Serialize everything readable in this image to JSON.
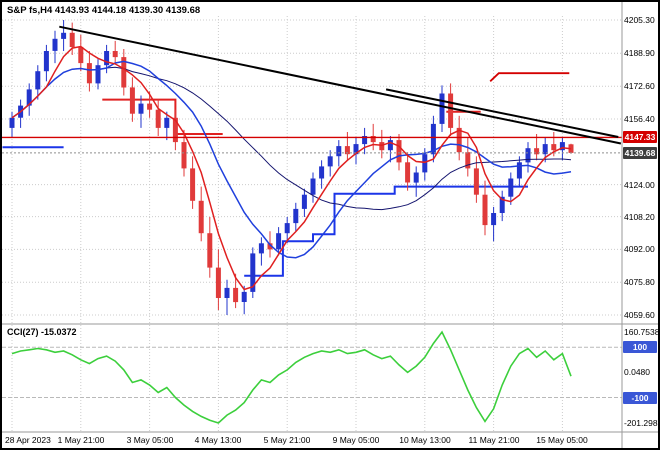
{
  "header": {
    "title": "S&P fs,H4 4143.93 4144.18 4139.30 4139.68"
  },
  "style": {
    "bull": "#2234cc",
    "bear": "#e03a3a",
    "ma_fast": "#e02020",
    "ma_slow": "#2040dd",
    "ma_trend": "#14146e",
    "step_red": "#e02020",
    "step_blue": "#1b35e8",
    "trendline": "#000000",
    "hline": "#d40000",
    "current_line": "#8f8f8f",
    "grid": "#cccccc",
    "cci_line": "#3ccf3c",
    "badge_hline_bg": "#d40000",
    "badge_current_bg": "#3d3d3d",
    "badge_cci_bg": "#3a57d6",
    "separator": "#9a9a9a"
  },
  "chart_data": {
    "type": "candlestick",
    "symbol": "S&P fs",
    "timeframe": "H4",
    "current_bar": {
      "open": 4143.93,
      "high": 4144.18,
      "low": 4139.3,
      "close": 4139.68
    },
    "candles": [
      [
        4152,
        4160,
        4147,
        4157
      ],
      [
        4157,
        4166,
        4152,
        4163
      ],
      [
        4163,
        4174,
        4158,
        4171
      ],
      [
        4171,
        4183,
        4166,
        4180
      ],
      [
        4180,
        4193,
        4175,
        4190
      ],
      [
        4190,
        4200,
        4184,
        4196
      ],
      [
        4196,
        4205.3,
        4190,
        4199
      ],
      [
        4199,
        4204,
        4188,
        4192
      ],
      [
        4192,
        4198,
        4180,
        4184
      ],
      [
        4184,
        4190,
        4170,
        4174
      ],
      [
        4174,
        4186,
        4171,
        4183
      ],
      [
        4183,
        4193,
        4179,
        4190
      ],
      [
        4190,
        4195,
        4184,
        4187
      ],
      [
        4187,
        4191,
        4168,
        4172
      ],
      [
        4172,
        4177,
        4155,
        4159
      ],
      [
        4159,
        4168,
        4152,
        4164
      ],
      [
        4164,
        4170,
        4157,
        4161
      ],
      [
        4161,
        4166,
        4148,
        4152
      ],
      [
        4152,
        4160,
        4146,
        4157
      ],
      [
        4157,
        4161,
        4141,
        4145
      ],
      [
        4145,
        4151,
        4128,
        4132
      ],
      [
        4132,
        4138,
        4112,
        4116
      ],
      [
        4116,
        4123,
        4096,
        4100
      ],
      [
        4100,
        4108,
        4078,
        4083
      ],
      [
        4083,
        4092,
        4062,
        4068
      ],
      [
        4068,
        4077,
        4059.6,
        4073
      ],
      [
        4073,
        4080,
        4063,
        4066
      ],
      [
        4066,
        4074,
        4060,
        4071
      ],
      [
        4071,
        4093,
        4068,
        4090
      ],
      [
        4090,
        4098,
        4084,
        4095
      ],
      [
        4095,
        4101,
        4088,
        4092
      ],
      [
        4092,
        4103,
        4089,
        4100
      ],
      [
        4100,
        4108,
        4095,
        4105
      ],
      [
        4105,
        4115,
        4101,
        4112
      ],
      [
        4112,
        4122,
        4108,
        4119
      ],
      [
        4119,
        4130,
        4115,
        4127
      ],
      [
        4127,
        4136,
        4122,
        4133
      ],
      [
        4133,
        4141,
        4128,
        4138
      ],
      [
        4138,
        4146,
        4133,
        4143
      ],
      [
        4143,
        4150,
        4136,
        4139
      ],
      [
        4139,
        4147,
        4134,
        4144
      ],
      [
        4144,
        4152,
        4139,
        4148
      ],
      [
        4148,
        4154,
        4141,
        4145
      ],
      [
        4145,
        4151,
        4137,
        4141
      ],
      [
        4141,
        4148,
        4135,
        4146
      ],
      [
        4146,
        4149,
        4131,
        4135
      ],
      [
        4135,
        4140,
        4121,
        4125
      ],
      [
        4125,
        4133,
        4118,
        4130
      ],
      [
        4130,
        4142,
        4126,
        4139
      ],
      [
        4139,
        4158,
        4135,
        4154
      ],
      [
        4154,
        4173,
        4150,
        4169
      ],
      [
        4169,
        4174,
        4148,
        4152
      ],
      [
        4152,
        4158,
        4136,
        4140
      ],
      [
        4140,
        4147,
        4128,
        4132
      ],
      [
        4132,
        4138,
        4115,
        4119
      ],
      [
        4119,
        4126,
        4099,
        4104
      ],
      [
        4104,
        4113,
        4096,
        4110
      ],
      [
        4110,
        4121,
        4106,
        4118
      ],
      [
        4118,
        4130,
        4114,
        4127
      ],
      [
        4127,
        4138,
        4123,
        4135
      ],
      [
        4135,
        4145,
        4130,
        4142
      ],
      [
        4142,
        4149,
        4136,
        4139
      ],
      [
        4139,
        4147,
        4135,
        4144
      ],
      [
        4144,
        4150,
        4138,
        4141
      ],
      [
        4141,
        4147,
        4136,
        4145
      ],
      [
        4143.93,
        4144.18,
        4139.3,
        4139.68
      ]
    ],
    "label_bar_indexes": [
      0,
      8,
      16,
      24,
      32,
      40,
      48,
      56,
      64
    ],
    "time_labels": [
      "28 Apr 2023",
      "1 May 21:00",
      "3 May 05:00",
      "4 May 13:00",
      "5 May 21:00",
      "9 May 05:00",
      "10 May 13:00",
      "11 May 21:00",
      "15 May 05:00"
    ],
    "price_axis_labels": [
      "4205.30",
      "4188.90",
      "4172.60",
      "4156.40",
      "4124.00",
      "4108.20",
      "4092.00",
      "4075.80",
      "4059.60"
    ],
    "price_badges": [
      {
        "label": "4147.33",
        "type": "hline"
      },
      {
        "label": "4139.68",
        "type": "current"
      }
    ],
    "ma": {
      "fast_period": 5,
      "slow_period": 12,
      "trend_period": 24
    },
    "overlays": {
      "hline_price": 4147.33,
      "current_price": 4139.68,
      "trendline_main": [
        [
          5.5,
          4202
        ],
        [
          70.8,
          4144.3
        ]
      ],
      "trendline_short": [
        [
          43.5,
          4171
        ],
        [
          70.5,
          4147.5
        ]
      ],
      "red_segment": [
        [
          55.6,
          4175
        ],
        [
          56.6,
          4179
        ],
        [
          64.8,
          4179
        ]
      ],
      "red_step": [
        [
          10.5,
          4166
        ],
        [
          19,
          4166
        ],
        [
          19,
          4149
        ],
        [
          24.5,
          4149
        ]
      ],
      "red_step2": [
        [
          50.5,
          4160
        ],
        [
          54.5,
          4160
        ]
      ],
      "blue_step_left": [
        [
          -1.1,
          4142.5
        ],
        [
          6,
          4142.5
        ]
      ],
      "blue_step": [
        [
          27,
          4079
        ],
        [
          31.5,
          4079
        ],
        [
          31.5,
          4096
        ],
        [
          35,
          4096
        ],
        [
          35,
          4099.5
        ],
        [
          37.5,
          4099.5
        ],
        [
          37.5,
          4119.5
        ],
        [
          44.5,
          4119.5
        ],
        [
          44.5,
          4123
        ],
        [
          60,
          4123
        ]
      ]
    },
    "cci": {
      "label": "CCI(27) -15.0372",
      "period": 27,
      "value": -15.0372,
      "axis_labels": [
        "160.7538",
        "0.0480",
        "-201.2987"
      ],
      "level_badges": [
        "100",
        "-100"
      ],
      "levels": [
        100,
        -100
      ],
      "values": [
        75,
        85,
        90,
        95,
        90,
        80,
        85,
        70,
        50,
        35,
        55,
        65,
        45,
        10,
        -40,
        -30,
        -50,
        -80,
        -60,
        -100,
        -130,
        -155,
        -175,
        -190,
        -201.3,
        -170,
        -150,
        -120,
        -70,
        -30,
        -40,
        -10,
        10,
        40,
        60,
        75,
        85,
        80,
        90,
        75,
        80,
        90,
        70,
        55,
        65,
        30,
        0,
        25,
        60,
        115,
        160.75,
        90,
        10,
        -70,
        -140,
        -195,
        -145,
        -50,
        25,
        75,
        95,
        60,
        85,
        50,
        75,
        -15.0372
      ]
    }
  }
}
